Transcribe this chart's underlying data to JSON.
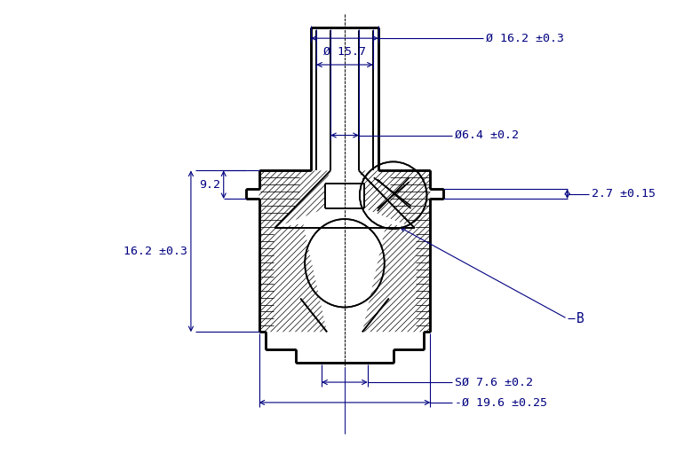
{
  "bg_color": "#ffffff",
  "line_color": "#000000",
  "dim_color": "#000080",
  "text_color": "#000080",
  "figsize": [
    7.7,
    5.12
  ],
  "dpi": 100,
  "ann_fs": 9.5,
  "annotations": {
    "dim_16_2_top": "Ø 16.2 ±0.3",
    "dim_15_7": "Ø 15.7",
    "dim_6_4": "Ø6.4 ±0.2",
    "dim_2_7": "2.7 ±0.15",
    "dim_9_2": "9.2",
    "dim_16_2_left": "16.2 ±0.3",
    "dim_7_6": "SØ 7.6 ±0.2",
    "dim_19_6": "-Ø 19.6 ±0.25",
    "label_B": "B"
  }
}
